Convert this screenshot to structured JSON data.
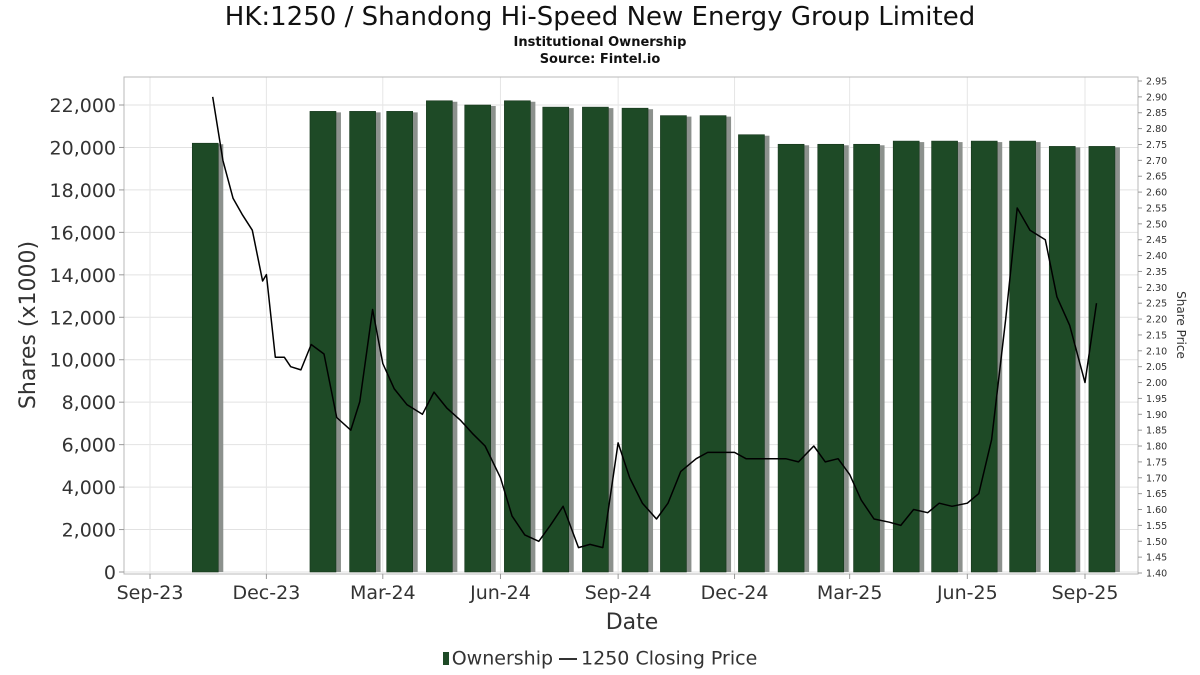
{
  "chart_data": {
    "type": "bar",
    "title": "HK:1250 / Shandong Hi-Speed New Energy Group Limited",
    "subtitle": "Institutional Ownership",
    "source": "Source: Fintel.io",
    "xlabel": "Date",
    "ylabel": "Shares (x1000)",
    "y2label": "Share Price",
    "ylim": [
      0,
      23000
    ],
    "y2lim": [
      1.4,
      2.96
    ],
    "yticks": [
      "0",
      "2,000",
      "4,000",
      "6,000",
      "8,000",
      "10,000",
      "12,000",
      "14,000",
      "16,000",
      "18,000",
      "20,000",
      "22,000"
    ],
    "y2ticks": [
      "1.40",
      "1.45",
      "1.50",
      "1.55",
      "1.60",
      "1.65",
      "1.70",
      "1.75",
      "1.80",
      "1.85",
      "1.90",
      "1.95",
      "2.00",
      "2.05",
      "2.10",
      "2.15",
      "2.20",
      "2.25",
      "2.30",
      "2.35",
      "2.40",
      "2.45",
      "2.50",
      "2.55",
      "2.60",
      "2.65",
      "2.70",
      "2.75",
      "2.80",
      "2.85",
      "2.90",
      "2.95"
    ],
    "xticks": [
      "Sep-23",
      "Dec-23",
      "Mar-24",
      "Jun-24",
      "Sep-24",
      "Dec-24",
      "Mar-25",
      "Jun-25",
      "Sep-25"
    ],
    "grid": true,
    "legend_position": "bottom",
    "series": [
      {
        "name": "Ownership",
        "color": "#1e4a26",
        "type": "bar",
        "x": [
          "2023-10-15",
          "2024-01-15",
          "2024-02-15",
          "2024-03-15",
          "2024-04-15",
          "2024-05-15",
          "2024-06-15",
          "2024-07-15",
          "2024-08-15",
          "2024-09-15",
          "2024-10-15",
          "2024-11-15",
          "2024-12-15",
          "2025-01-15",
          "2025-02-15",
          "2025-03-15",
          "2025-04-15",
          "2025-05-15",
          "2025-06-15",
          "2025-07-15",
          "2025-08-15",
          "2025-09-15"
        ],
        "values": [
          20200,
          21700,
          21700,
          21700,
          22200,
          22000,
          22200,
          21900,
          21900,
          21850,
          21500,
          21500,
          20600,
          20150,
          20150,
          20150,
          20300,
          20300,
          20300,
          20300,
          20050,
          20050
        ]
      },
      {
        "name": "1250 Closing Price",
        "color": "#000000",
        "type": "line",
        "x": [
          "2023-10-20",
          "2023-10-28",
          "2023-11-05",
          "2023-11-12",
          "2023-11-20",
          "2023-11-28",
          "2023-12-01",
          "2023-12-08",
          "2023-12-15",
          "2023-12-20",
          "2023-12-28",
          "2024-01-05",
          "2024-01-15",
          "2024-01-25",
          "2024-02-05",
          "2024-02-12",
          "2024-02-22",
          "2024-03-01",
          "2024-03-10",
          "2024-03-20",
          "2024-04-01",
          "2024-04-10",
          "2024-04-20",
          "2024-05-01",
          "2024-05-10",
          "2024-05-20",
          "2024-06-01",
          "2024-06-10",
          "2024-06-20",
          "2024-07-01",
          "2024-07-10",
          "2024-07-20",
          "2024-08-01",
          "2024-08-10",
          "2024-08-20",
          "2024-09-01",
          "2024-09-10",
          "2024-09-20",
          "2024-10-01",
          "2024-10-10",
          "2024-10-20",
          "2024-11-01",
          "2024-11-10",
          "2024-11-20",
          "2024-12-01",
          "2024-12-10",
          "2024-12-20",
          "2025-01-01",
          "2025-01-10",
          "2025-01-20",
          "2025-02-01",
          "2025-02-10",
          "2025-02-20",
          "2025-03-01",
          "2025-03-10",
          "2025-03-20",
          "2025-04-01",
          "2025-04-10",
          "2025-04-20",
          "2025-05-01",
          "2025-05-10",
          "2025-05-20",
          "2025-06-01",
          "2025-06-10",
          "2025-06-20",
          "2025-07-01",
          "2025-07-10",
          "2025-07-20",
          "2025-08-01",
          "2025-08-10",
          "2025-08-20",
          "2025-09-01",
          "2025-09-10"
        ],
        "values": [
          2.9,
          2.7,
          2.58,
          2.53,
          2.48,
          2.32,
          2.34,
          2.08,
          2.08,
          2.05,
          2.04,
          2.12,
          2.09,
          1.89,
          1.85,
          1.94,
          2.23,
          2.06,
          1.98,
          1.93,
          1.9,
          1.97,
          1.92,
          1.88,
          1.84,
          1.8,
          1.7,
          1.58,
          1.52,
          1.5,
          1.55,
          1.61,
          1.48,
          1.49,
          1.48,
          1.81,
          1.7,
          1.62,
          1.57,
          1.62,
          1.72,
          1.76,
          1.78,
          1.78,
          1.78,
          1.76,
          1.76,
          1.76,
          1.76,
          1.75,
          1.8,
          1.75,
          1.76,
          1.71,
          1.63,
          1.57,
          1.56,
          1.55,
          1.6,
          1.59,
          1.62,
          1.61,
          1.62,
          1.65,
          1.82,
          2.2,
          2.55,
          2.48,
          2.45,
          2.27,
          2.18,
          2.0,
          2.25
        ]
      }
    ]
  }
}
